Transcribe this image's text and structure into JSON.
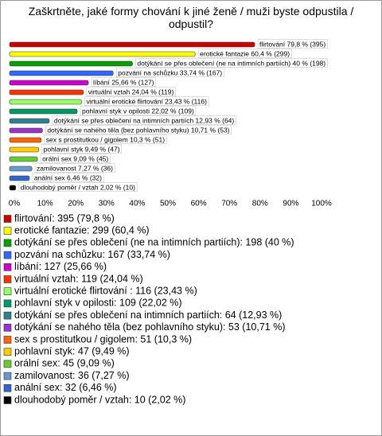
{
  "chart_data": {
    "type": "bar",
    "orientation": "horizontal",
    "title": "Zaškrtněte, jaké formy chování k jiné ženě / muži byste odpustila / odpustil?",
    "values": [
      79.8,
      60.4,
      40,
      33.74,
      25.66,
      24.04,
      23.43,
      22.02,
      12.93,
      10.71,
      10.3,
      9.49,
      9.09,
      7.27,
      6.46,
      2.02
    ],
    "value_labels": [
      "flirtování 79,8 % (395)",
      "erotické fantazie 60,4 % (299)",
      "dotýkání se přes oblečení (ne na intimních partiích) 40 % (198)",
      "pozvání na schůzku 33,74 % (167)",
      "líbání 25,66 % (127)",
      "virtuální vztah 24,04 % (119)",
      "virtuální erotické flirtování  23,43 % (116)",
      "pohlavní styk v opilosti 22,02 % (109)",
      "dotýkání se přes oblečení na intimních partiích 12,93 % (64)",
      "dotýkání se nahého těla (bez pohlavního styku) 10,71 % (53)",
      "sex s prostitutkou / gigolem 10,3 % (51)",
      "pohlavní styk 9,49 % (47)",
      "orální sex 9,09 % (45)",
      "zamilovanost 7,27 % (36)",
      "anální sex 6,46 % (32)",
      "dlouhodobý poměr / vztah 2,02 % (10)"
    ],
    "legend_labels": [
      "flirtování: 395 (79,8 %)",
      "erotické fantazie: 299 (60,4 %)",
      "dotýkání se přes oblečení (ne na intimních partiích): 198 (40 %)",
      "pozvání na schůzku: 167 (33,74 %)",
      "líbání: 127 (25,66 %)",
      "virtuální vztah: 119 (24,04 %)",
      "virtuální erotické flirtování : 116 (23,43 %)",
      "pohlavní styk v opilosti: 109 (22,02 %)",
      "dotýkání se přes oblečení na intimních partiích: 64 (12,93 %)",
      "dotýkání se nahého těla (bez pohlavního styku): 53 (10,71 %)",
      "sex s prostitutkou / gigolem: 51 (10,3 %)",
      "pohlavní styk: 47 (9,49 %)",
      "orální sex: 45 (9,09 %)",
      "zamilovanost: 36 (7,27 %)",
      "anální sex: 32 (6,46 %)",
      "dlouhodobý poměr / vztah: 10 (2,02 %)"
    ],
    "colors": [
      "#cc0000",
      "#ffff00",
      "#00a000",
      "#3366ff",
      "#cc00cc",
      "#ff3300",
      "#99ff66",
      "#009966",
      "#2f7f8f",
      "#9933cc",
      "#ff6600",
      "#ffcc00",
      "#66cc33",
      "#6699cc",
      "#3366cc",
      "#000000"
    ],
    "xlim": [
      0,
      100
    ],
    "xticks": [
      {
        "value": 0,
        "label": "0%"
      },
      {
        "value": 10,
        "label": "10%"
      },
      {
        "value": 20,
        "label": "20%"
      },
      {
        "value": 30,
        "label": "30%"
      },
      {
        "value": 40,
        "label": "40%"
      },
      {
        "value": 50,
        "label": "50%"
      },
      {
        "value": 60,
        "label": "60%"
      },
      {
        "value": 70,
        "label": "70%"
      },
      {
        "value": 80,
        "label": "80%"
      },
      {
        "value": 90,
        "label": "90%"
      },
      {
        "value": 100,
        "label": "100%"
      }
    ]
  }
}
